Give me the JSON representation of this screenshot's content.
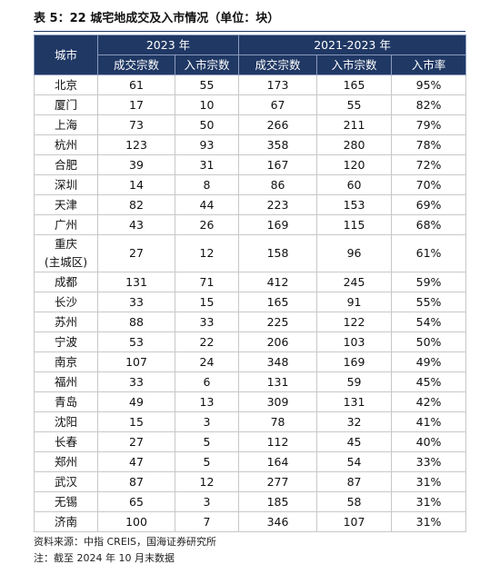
{
  "header": {
    "title": "表 5：22 城宅地成交及入市情况（单位：块）"
  },
  "table": {
    "head": {
      "city": "城市",
      "group1": "2023 年",
      "group2": "2021-2023 年",
      "sub": [
        "成交宗数",
        "入市宗数",
        "成交宗数",
        "入市宗数",
        "入市率"
      ]
    },
    "rows": [
      [
        "北京",
        61,
        55,
        173,
        165,
        "95%"
      ],
      [
        "厦门",
        17,
        10,
        67,
        55,
        "82%"
      ],
      [
        "上海",
        73,
        50,
        266,
        211,
        "79%"
      ],
      [
        "杭州",
        123,
        93,
        358,
        280,
        "78%"
      ],
      [
        "合肥",
        39,
        31,
        167,
        120,
        "72%"
      ],
      [
        "深圳",
        14,
        8,
        86,
        60,
        "70%"
      ],
      [
        "天津",
        82,
        44,
        223,
        153,
        "69%"
      ],
      [
        "广州",
        43,
        26,
        169,
        115,
        "68%"
      ],
      [
        "重庆\n(主城区)",
        27,
        12,
        158,
        96,
        "61%"
      ],
      [
        "成都",
        131,
        71,
        412,
        245,
        "59%"
      ],
      [
        "长沙",
        33,
        15,
        165,
        91,
        "55%"
      ],
      [
        "苏州",
        88,
        33,
        225,
        122,
        "54%"
      ],
      [
        "宁波",
        53,
        22,
        206,
        103,
        "50%"
      ],
      [
        "南京",
        107,
        24,
        348,
        169,
        "49%"
      ],
      [
        "福州",
        33,
        6,
        131,
        59,
        "45%"
      ],
      [
        "青岛",
        49,
        13,
        309,
        131,
        "42%"
      ],
      [
        "沈阳",
        15,
        3,
        78,
        32,
        "41%"
      ],
      [
        "长春",
        27,
        5,
        112,
        45,
        "40%"
      ],
      [
        "郑州",
        47,
        5,
        164,
        54,
        "33%"
      ],
      [
        "武汉",
        87,
        12,
        277,
        87,
        "31%"
      ],
      [
        "无锡",
        65,
        3,
        185,
        58,
        "31%"
      ],
      [
        "济南",
        100,
        7,
        346,
        107,
        "31%"
      ]
    ]
  },
  "notes": [
    "资料来源：中指 CREIS，国海证券研究所",
    "注：截至 2024 年 10 月末数据"
  ]
}
